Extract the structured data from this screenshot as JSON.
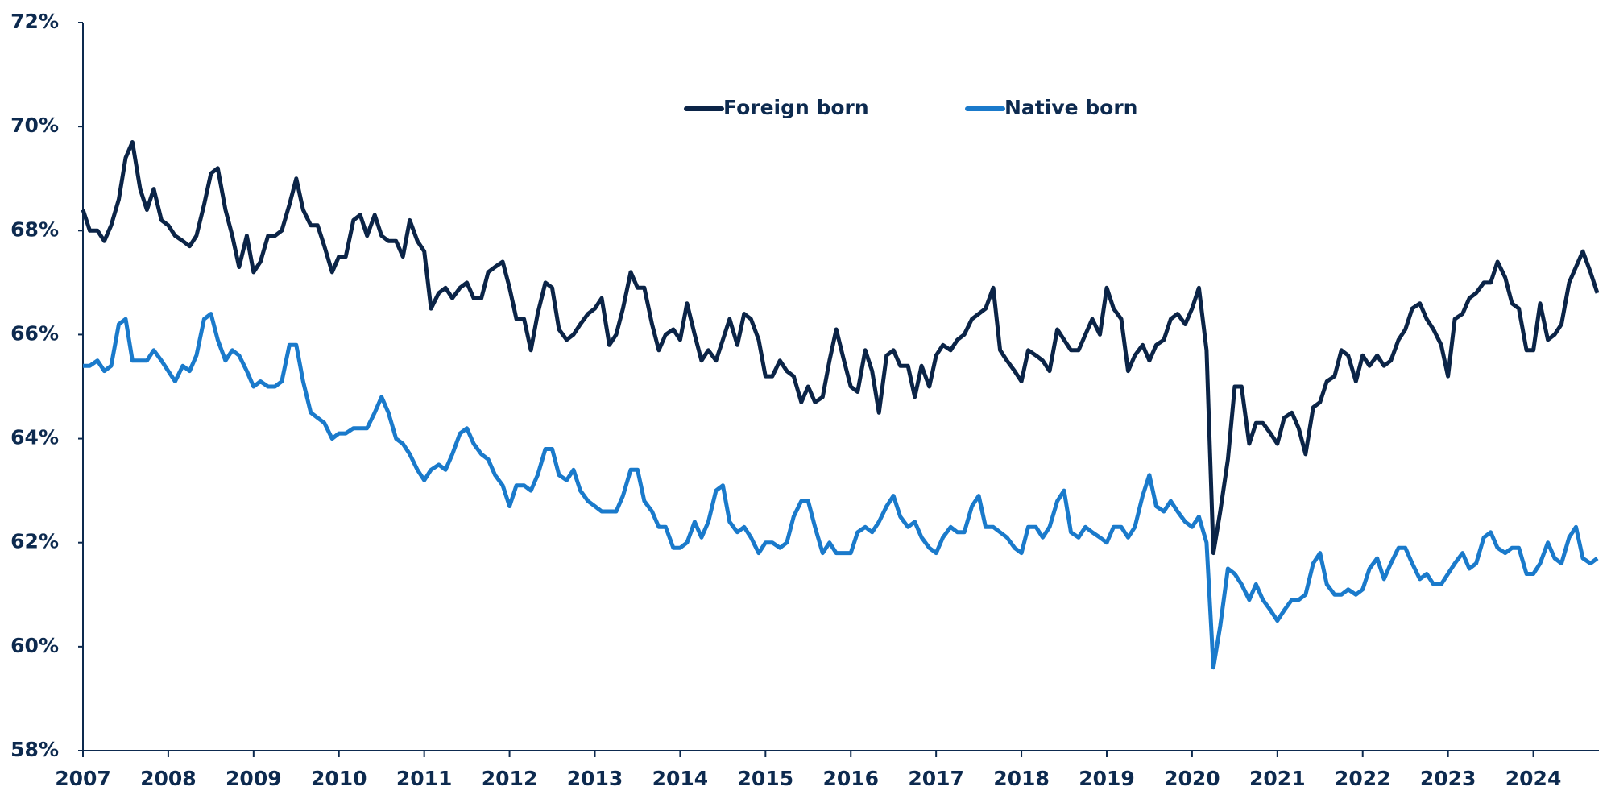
{
  "chart_data": {
    "type": "line",
    "x": [
      2007.0,
      2007.08,
      2007.17,
      2007.25,
      2007.33,
      2007.42,
      2007.5,
      2007.58,
      2007.67,
      2007.75,
      2007.83,
      2007.92,
      2008.0,
      2008.08,
      2008.17,
      2008.25,
      2008.33,
      2008.42,
      2008.5,
      2008.58,
      2008.67,
      2008.75,
      2008.83,
      2008.92,
      2009.0,
      2009.08,
      2009.17,
      2009.25,
      2009.33,
      2009.42,
      2009.5,
      2009.58,
      2009.67,
      2009.75,
      2009.83,
      2009.92,
      2010.0,
      2010.08,
      2010.17,
      2010.25,
      2010.33,
      2010.42,
      2010.5,
      2010.58,
      2010.67,
      2010.75,
      2010.83,
      2010.92,
      2011.0,
      2011.08,
      2011.17,
      2011.25,
      2011.33,
      2011.42,
      2011.5,
      2011.58,
      2011.67,
      2011.75,
      2011.83,
      2011.92,
      2012.0,
      2012.08,
      2012.17,
      2012.25,
      2012.33,
      2012.42,
      2012.5,
      2012.58,
      2012.67,
      2012.75,
      2012.83,
      2012.92,
      2013.0,
      2013.08,
      2013.17,
      2013.25,
      2013.33,
      2013.42,
      2013.5,
      2013.58,
      2013.67,
      2013.75,
      2013.83,
      2013.92,
      2014.0,
      2014.08,
      2014.17,
      2014.25,
      2014.33,
      2014.42,
      2014.5,
      2014.58,
      2014.67,
      2014.75,
      2014.83,
      2014.92,
      2015.0,
      2015.08,
      2015.17,
      2015.25,
      2015.33,
      2015.42,
      2015.5,
      2015.58,
      2015.67,
      2015.75,
      2015.83,
      2015.92,
      2016.0,
      2016.08,
      2016.17,
      2016.25,
      2016.33,
      2016.42,
      2016.5,
      2016.58,
      2016.67,
      2016.75,
      2016.83,
      2016.92,
      2017.0,
      2017.08,
      2017.17,
      2017.25,
      2017.33,
      2017.42,
      2017.5,
      2017.58,
      2017.67,
      2017.75,
      2017.83,
      2017.92,
      2018.0,
      2018.08,
      2018.17,
      2018.25,
      2018.33,
      2018.42,
      2018.5,
      2018.58,
      2018.67,
      2018.75,
      2018.83,
      2018.92,
      2019.0,
      2019.08,
      2019.17,
      2019.25,
      2019.33,
      2019.42,
      2019.5,
      2019.58,
      2019.67,
      2019.75,
      2019.83,
      2019.92,
      2020.0,
      2020.08,
      2020.17,
      2020.25,
      2020.33,
      2020.42,
      2020.5,
      2020.58,
      2020.67,
      2020.75,
      2020.83,
      2020.92,
      2021.0,
      2021.08,
      2021.17,
      2021.25,
      2021.33,
      2021.42,
      2021.5,
      2021.58,
      2021.67,
      2021.75,
      2021.83,
      2021.92,
      2022.0,
      2022.08,
      2022.17,
      2022.25,
      2022.33,
      2022.42,
      2022.5,
      2022.58,
      2022.67,
      2022.75,
      2022.83,
      2022.92,
      2023.0,
      2023.08,
      2023.17,
      2023.25,
      2023.33,
      2023.42,
      2023.5,
      2023.58,
      2023.67,
      2023.75,
      2023.83,
      2023.92,
      2024.0,
      2024.08,
      2024.17,
      2024.25,
      2024.33,
      2024.42,
      2024.5,
      2024.58,
      2024.67,
      2024.75
    ],
    "series": [
      {
        "name": "Foreign born",
        "color": "#0b2447",
        "values": [
          68.4,
          68.0,
          68.0,
          67.8,
          68.1,
          68.6,
          69.4,
          69.7,
          68.8,
          68.4,
          68.8,
          68.2,
          68.1,
          67.9,
          67.8,
          67.7,
          67.9,
          68.5,
          69.1,
          69.2,
          68.4,
          67.9,
          67.3,
          67.9,
          67.2,
          67.4,
          67.9,
          67.9,
          68.0,
          68.5,
          69.0,
          68.4,
          68.1,
          68.1,
          67.7,
          67.2,
          67.5,
          67.5,
          68.2,
          68.3,
          67.9,
          68.3,
          67.9,
          67.8,
          67.8,
          67.5,
          68.2,
          67.8,
          67.6,
          66.5,
          66.8,
          66.9,
          66.7,
          66.9,
          67.0,
          66.7,
          66.7,
          67.2,
          67.3,
          67.4,
          66.9,
          66.3,
          66.3,
          65.7,
          66.4,
          67.0,
          66.9,
          66.1,
          65.9,
          66.0,
          66.2,
          66.4,
          66.5,
          66.7,
          65.8,
          66.0,
          66.5,
          67.2,
          66.9,
          66.9,
          66.2,
          65.7,
          66.0,
          66.1,
          65.9,
          66.6,
          66.0,
          65.5,
          65.7,
          65.5,
          65.9,
          66.3,
          65.8,
          66.4,
          66.3,
          65.9,
          65.2,
          65.2,
          65.5,
          65.3,
          65.2,
          64.7,
          65.0,
          64.7,
          64.8,
          65.5,
          66.1,
          65.5,
          65.0,
          64.9,
          65.7,
          65.3,
          64.5,
          65.6,
          65.7,
          65.4,
          65.4,
          64.8,
          65.4,
          65.0,
          65.6,
          65.8,
          65.7,
          65.9,
          66.0,
          66.3,
          66.4,
          66.5,
          66.9,
          65.7,
          65.5,
          65.3,
          65.1,
          65.7,
          65.6,
          65.5,
          65.3,
          66.1,
          65.9,
          65.7,
          65.7,
          66.0,
          66.3,
          66.0,
          66.9,
          66.5,
          66.3,
          65.3,
          65.6,
          65.8,
          65.5,
          65.8,
          65.9,
          66.3,
          66.4,
          66.2,
          66.5,
          66.9,
          65.7,
          61.8,
          62.6,
          63.6,
          65.0,
          65.0,
          63.9,
          64.3,
          64.3,
          64.1,
          63.9,
          64.4,
          64.5,
          64.2,
          63.7,
          64.6,
          64.7,
          65.1,
          65.2,
          65.7,
          65.6,
          65.1,
          65.6,
          65.4,
          65.6,
          65.4,
          65.5,
          65.9,
          66.1,
          66.5,
          66.6,
          66.3,
          66.1,
          65.8,
          65.2,
          66.3,
          66.4,
          66.7,
          66.8,
          67.0,
          67.0,
          67.4,
          67.1,
          66.6,
          66.5,
          65.7,
          65.7,
          66.6,
          65.9,
          66.0,
          66.2,
          67.0,
          67.3,
          67.6,
          67.2,
          66.8
        ]
      },
      {
        "name": "Native born",
        "color": "#1a7acb",
        "values": [
          65.4,
          65.4,
          65.5,
          65.3,
          65.4,
          66.2,
          66.3,
          65.5,
          65.5,
          65.5,
          65.7,
          65.5,
          65.3,
          65.1,
          65.4,
          65.3,
          65.6,
          66.3,
          66.4,
          65.9,
          65.5,
          65.7,
          65.6,
          65.3,
          65.0,
          65.1,
          65.0,
          65.0,
          65.1,
          65.8,
          65.8,
          65.1,
          64.5,
          64.4,
          64.3,
          64.0,
          64.1,
          64.1,
          64.2,
          64.2,
          64.2,
          64.5,
          64.8,
          64.5,
          64.0,
          63.9,
          63.7,
          63.4,
          63.2,
          63.4,
          63.5,
          63.4,
          63.7,
          64.1,
          64.2,
          63.9,
          63.7,
          63.6,
          63.3,
          63.1,
          62.7,
          63.1,
          63.1,
          63.0,
          63.3,
          63.8,
          63.8,
          63.3,
          63.2,
          63.4,
          63.0,
          62.8,
          62.7,
          62.6,
          62.6,
          62.6,
          62.9,
          63.4,
          63.4,
          62.8,
          62.6,
          62.3,
          62.3,
          61.9,
          61.9,
          62.0,
          62.4,
          62.1,
          62.4,
          63.0,
          63.1,
          62.4,
          62.2,
          62.3,
          62.1,
          61.8,
          62.0,
          62.0,
          61.9,
          62.0,
          62.5,
          62.8,
          62.8,
          62.3,
          61.8,
          62.0,
          61.8,
          61.8,
          61.8,
          62.2,
          62.3,
          62.2,
          62.4,
          62.7,
          62.9,
          62.5,
          62.3,
          62.4,
          62.1,
          61.9,
          61.8,
          62.1,
          62.3,
          62.2,
          62.2,
          62.7,
          62.9,
          62.3,
          62.3,
          62.2,
          62.1,
          61.9,
          61.8,
          62.3,
          62.3,
          62.1,
          62.3,
          62.8,
          63.0,
          62.2,
          62.1,
          62.3,
          62.2,
          62.1,
          62.0,
          62.3,
          62.3,
          62.1,
          62.3,
          62.9,
          63.3,
          62.7,
          62.6,
          62.8,
          62.6,
          62.4,
          62.3,
          62.5,
          62.0,
          59.6,
          60.4,
          61.5,
          61.4,
          61.2,
          60.9,
          61.2,
          60.9,
          60.7,
          60.5,
          60.7,
          60.9,
          60.9,
          61.0,
          61.6,
          61.8,
          61.2,
          61.0,
          61.0,
          61.1,
          61.0,
          61.1,
          61.5,
          61.7,
          61.3,
          61.6,
          61.9,
          61.9,
          61.6,
          61.3,
          61.4,
          61.2,
          61.2,
          61.4,
          61.6,
          61.8,
          61.5,
          61.6,
          62.1,
          62.2,
          61.9,
          61.8,
          61.9,
          61.9,
          61.4,
          61.4,
          61.6,
          62.0,
          61.7,
          61.6,
          62.1,
          62.3,
          61.7,
          61.6,
          61.7
        ]
      }
    ],
    "xlim": [
      2007,
      2024.75
    ],
    "xticks": [
      2007,
      2008,
      2009,
      2010,
      2011,
      2012,
      2013,
      2014,
      2015,
      2016,
      2017,
      2018,
      2019,
      2020,
      2021,
      2022,
      2023,
      2024
    ],
    "ylim": [
      58,
      72
    ],
    "yticks": [
      {
        "value": 58,
        "label": "58%"
      },
      {
        "value": 60,
        "label": "60%"
      },
      {
        "value": 62,
        "label": "62%"
      },
      {
        "value": 64,
        "label": "64%"
      },
      {
        "value": 66,
        "label": "66%"
      },
      {
        "value": 68,
        "label": "68%"
      },
      {
        "value": 70,
        "label": "70%"
      },
      {
        "value": 72,
        "label": "72%"
      }
    ],
    "legend": "top"
  }
}
